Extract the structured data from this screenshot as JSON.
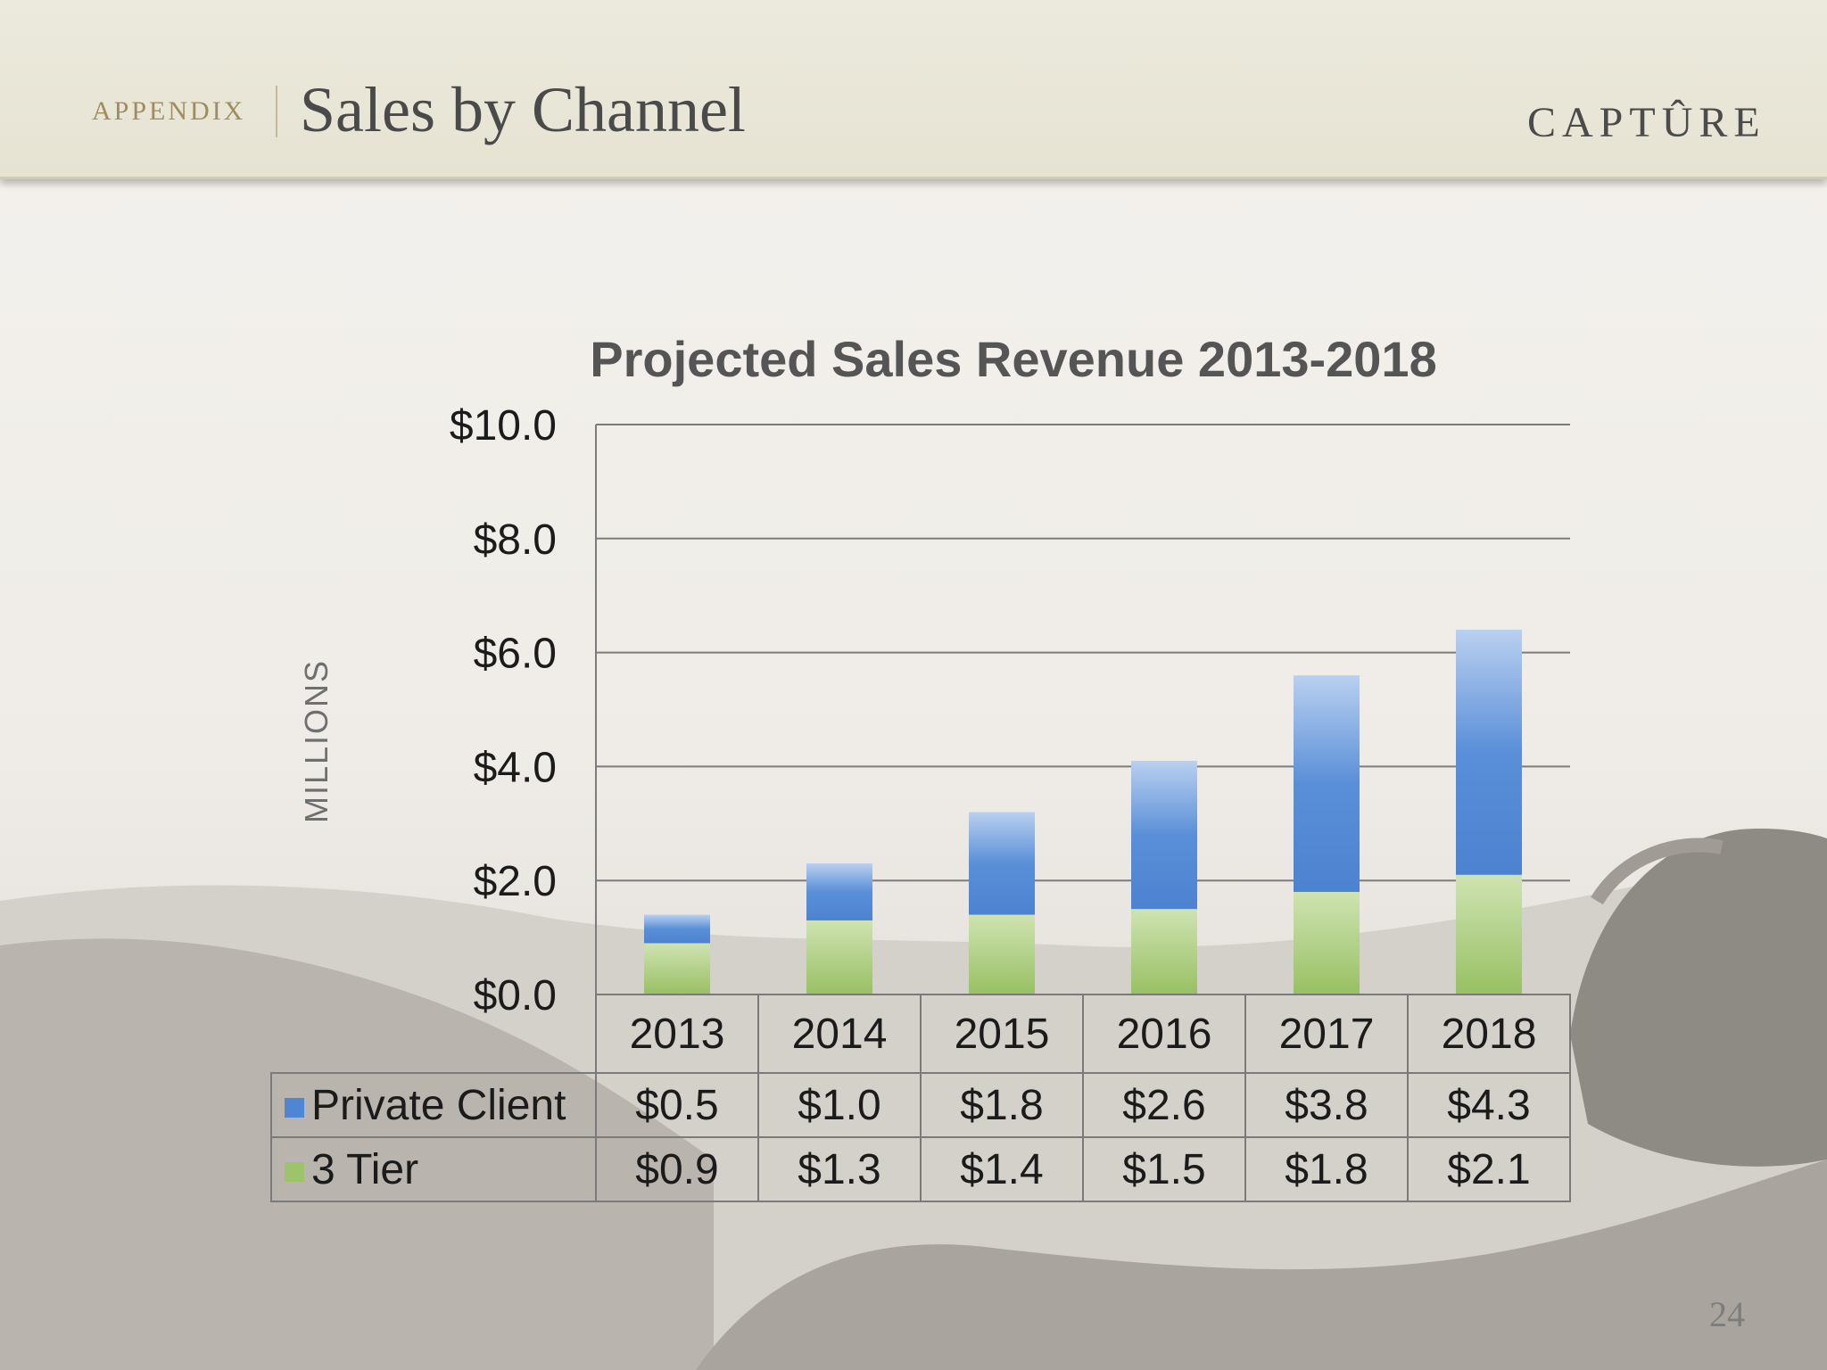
{
  "header": {
    "section_label": "APPENDIX",
    "title": "Sales by Channel",
    "brand": "CAPTÛRE"
  },
  "page_number": "24",
  "colors": {
    "private_client": "#4f86d4",
    "three_tier": "#9ec46b",
    "header_bg": "#e8e6d8",
    "section_label": "#a08c5e"
  },
  "chart_data": {
    "type": "bar",
    "stacked": true,
    "title": "Projected Sales Revenue 2013-2018",
    "ylabel": "MILLIONS",
    "ylim": [
      0,
      10
    ],
    "yticks": [
      "$0.0",
      "$2.0",
      "$4.0",
      "$6.0",
      "$8.0",
      "$10.0"
    ],
    "grid": true,
    "categories": [
      "2013",
      "2014",
      "2015",
      "2016",
      "2017",
      "2018"
    ],
    "series": [
      {
        "name": "3 Tier",
        "values": [
          0.9,
          1.3,
          1.4,
          1.5,
          1.8,
          2.1
        ],
        "labels": [
          "$0.9",
          "$1.3",
          "$1.4",
          "$1.5",
          "$1.8",
          "$2.1"
        ]
      },
      {
        "name": "Private Client",
        "values": [
          0.5,
          1.0,
          1.8,
          2.6,
          3.8,
          4.3
        ],
        "labels": [
          "$0.5",
          "$1.0",
          "$1.8",
          "$2.6",
          "$3.8",
          "$4.3"
        ]
      }
    ]
  }
}
